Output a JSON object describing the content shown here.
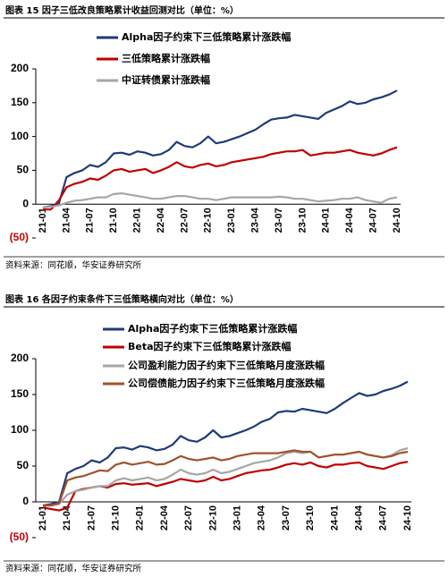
{
  "chart_data": [
    {
      "type": "line",
      "title": "图表 15 因子三低改良策略累计收益回测对比（单位：%）",
      "source": "资料来源：同花顺，华安证券研究所",
      "categories": [
        "21-01",
        null,
        null,
        "21-04",
        null,
        null,
        "21-07",
        null,
        null,
        "21-10",
        null,
        null,
        "22-01",
        null,
        null,
        "22-04",
        null,
        null,
        "22-07",
        null,
        null,
        "22-10",
        null,
        null,
        "23-01",
        null,
        null,
        "23-04",
        null,
        null,
        "23-07",
        null,
        null,
        "23-10",
        null,
        null,
        "24-01",
        null,
        null,
        "24-04",
        null,
        null,
        "24-07",
        null,
        null,
        "24-10"
      ],
      "ylim": [
        -50,
        200
      ],
      "yticks": [
        {
          "value": -50,
          "label": "(50)"
        },
        0,
        50,
        100,
        150,
        200
      ],
      "series": [
        {
          "name": "Alpha因子约束下三低策略累计涨跌幅",
          "color": "#1f3a7a",
          "values": [
            -5,
            -3,
            0,
            40,
            46,
            50,
            58,
            55,
            62,
            75,
            76,
            73,
            78,
            76,
            72,
            74,
            80,
            92,
            86,
            84,
            90,
            100,
            90,
            92,
            96,
            100,
            105,
            110,
            118,
            125,
            127,
            128,
            132,
            130,
            128,
            126,
            135,
            140,
            145,
            152,
            148,
            150,
            155,
            158,
            162,
            168
          ]
        },
        {
          "name": "三低策略累计涨跌幅",
          "color": "#c00000",
          "values": [
            -8,
            -8,
            5,
            25,
            30,
            33,
            38,
            36,
            42,
            50,
            52,
            48,
            50,
            52,
            46,
            50,
            55,
            62,
            56,
            54,
            58,
            60,
            56,
            58,
            62,
            64,
            66,
            68,
            70,
            74,
            76,
            78,
            78,
            80,
            72,
            74,
            76,
            76,
            78,
            80,
            76,
            74,
            72,
            75,
            80,
            84
          ]
        },
        {
          "name": "中证转债累计涨跌幅",
          "color": "#a6a6a6",
          "values": [
            -5,
            -4,
            -2,
            2,
            5,
            6,
            8,
            10,
            10,
            15,
            16,
            14,
            12,
            10,
            8,
            8,
            10,
            12,
            12,
            10,
            8,
            8,
            6,
            8,
            10,
            10,
            10,
            10,
            10,
            10,
            11,
            10,
            8,
            8,
            6,
            4,
            5,
            6,
            8,
            8,
            10,
            6,
            4,
            2,
            8,
            10
          ]
        }
      ]
    },
    {
      "type": "line",
      "title": "图表 16 各因子约束条件下三低策略横向对比（单位：%）",
      "source": "资料来源：同花顺，华安证券研究所",
      "categories": [
        "21-01",
        null,
        null,
        "21-04",
        null,
        null,
        "21-07",
        null,
        null,
        "21-10",
        null,
        null,
        "22-01",
        null,
        null,
        "22-04",
        null,
        null,
        "22-07",
        null,
        null,
        "22-10",
        null,
        null,
        "23-01",
        null,
        null,
        "23-04",
        null,
        null,
        "23-07",
        null,
        null,
        "23-10",
        null,
        null,
        "24-01",
        null,
        null,
        "24-04",
        null,
        null,
        "24-07",
        null,
        null,
        "24-10"
      ],
      "ylim": [
        -50,
        200
      ],
      "yticks": [
        {
          "value": -50,
          "label": "(50)"
        },
        0,
        50,
        100,
        150,
        200
      ],
      "series": [
        {
          "name": "Alpha因子约束下三低策略累计涨跌幅",
          "color": "#1f3a7a",
          "values": [
            -5,
            -3,
            0,
            40,
            46,
            50,
            58,
            55,
            62,
            75,
            76,
            73,
            78,
            76,
            72,
            74,
            80,
            92,
            86,
            84,
            90,
            100,
            90,
            92,
            96,
            100,
            105,
            112,
            116,
            125,
            127,
            126,
            130,
            128,
            126,
            124,
            130,
            138,
            145,
            152,
            148,
            150,
            155,
            158,
            162,
            168
          ]
        },
        {
          "name": "Beta因子约束下三低策略累计涨跌幅",
          "color": "#c00000",
          "values": [
            -8,
            -10,
            -12,
            -8,
            15,
            18,
            20,
            22,
            20,
            25,
            26,
            24,
            25,
            26,
            22,
            25,
            28,
            32,
            30,
            28,
            30,
            35,
            30,
            32,
            36,
            40,
            42,
            44,
            45,
            48,
            52,
            54,
            52,
            55,
            50,
            48,
            52,
            52,
            54,
            55,
            50,
            48,
            46,
            50,
            54,
            56
          ]
        },
        {
          "name": "公司盈利能力因子约束下三低策略月度涨跌幅",
          "color": "#a6a6a6",
          "values": [
            -5,
            -5,
            -3,
            10,
            15,
            17,
            20,
            22,
            22,
            30,
            33,
            30,
            32,
            34,
            30,
            32,
            38,
            45,
            40,
            38,
            40,
            45,
            40,
            42,
            46,
            50,
            54,
            56,
            58,
            62,
            68,
            70,
            68,
            70,
            62,
            64,
            66,
            66,
            68,
            70,
            66,
            64,
            62,
            65,
            72,
            75
          ]
        },
        {
          "name": "公司偿债能力因子约束下三低策略月度涨跌幅",
          "color": "#a0522d",
          "values": [
            -5,
            -5,
            -2,
            30,
            34,
            36,
            40,
            44,
            43,
            52,
            55,
            52,
            54,
            56,
            52,
            53,
            58,
            64,
            60,
            58,
            60,
            62,
            58,
            60,
            64,
            66,
            68,
            68,
            68,
            68,
            70,
            72,
            70,
            70,
            62,
            64,
            66,
            66,
            68,
            70,
            66,
            64,
            62,
            64,
            68,
            70
          ]
        }
      ]
    }
  ]
}
